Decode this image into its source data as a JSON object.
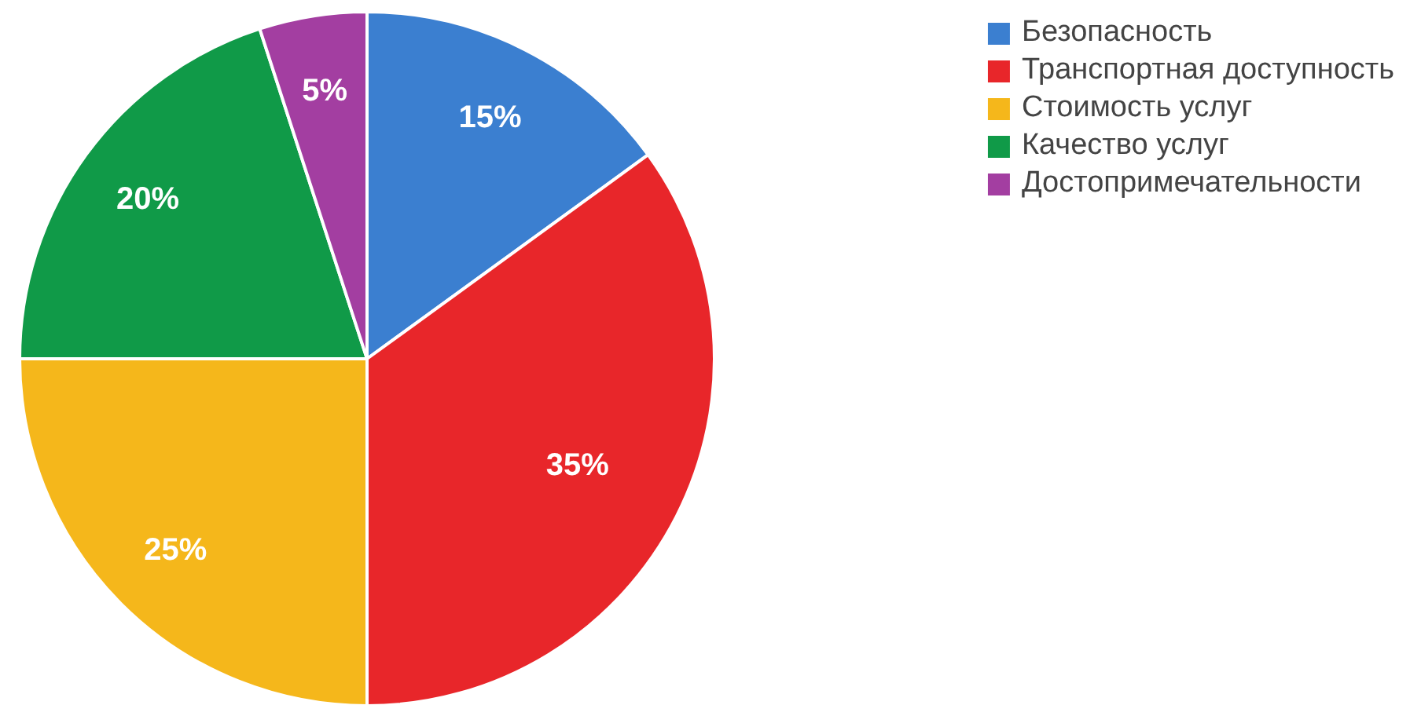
{
  "chart_data": {
    "type": "pie",
    "categories": [
      "Безопасность",
      "Транспортная доступность",
      "Стоимость услуг",
      "Качество услуг",
      "Достопримечательности"
    ],
    "values": [
      15,
      35,
      25,
      20,
      5
    ],
    "colors": [
      "#3b7fd0",
      "#e8262a",
      "#f5b71b",
      "#109a48",
      "#a33ea1"
    ],
    "value_labels": [
      "15%",
      "35%",
      "25%",
      "20%",
      "5%"
    ],
    "legend": "top right"
  }
}
